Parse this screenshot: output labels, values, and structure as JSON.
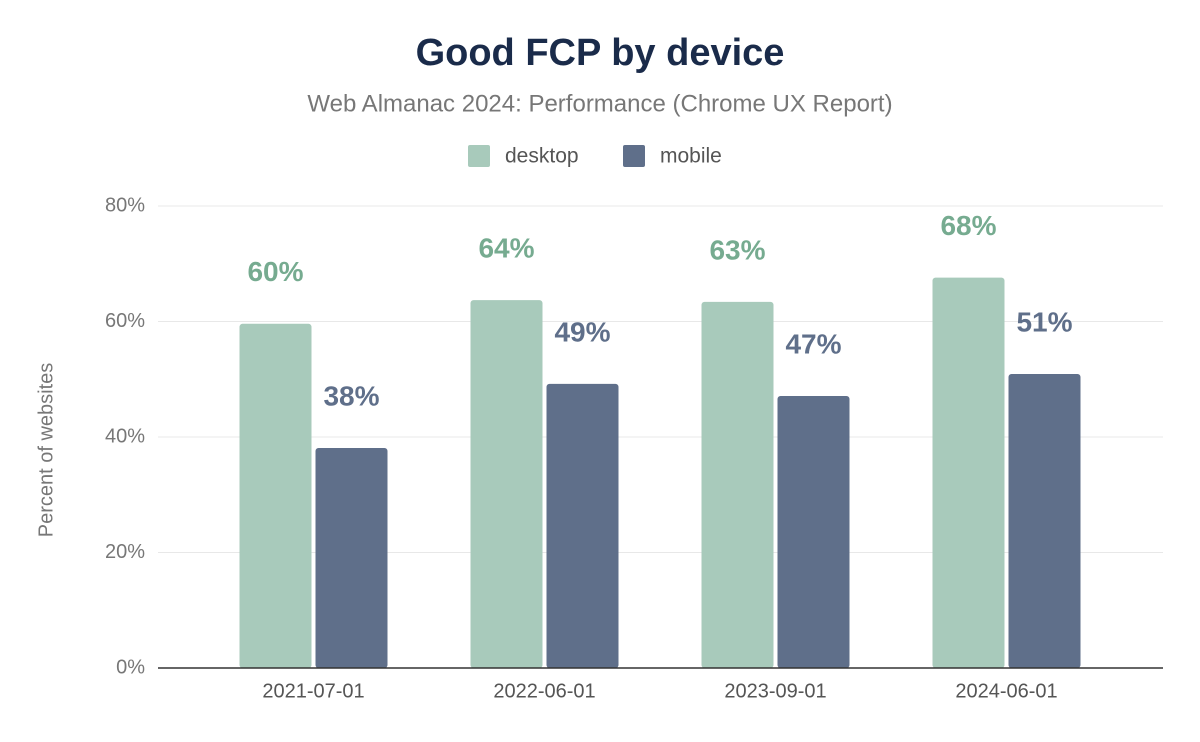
{
  "chart_data": {
    "type": "bar",
    "title": "Good FCP by device",
    "subtitle": "Web Almanac 2024: Performance (Chrome UX Report)",
    "y_label": "Percent of websites",
    "categories": [
      "2021-07-01",
      "2022-06-01",
      "2023-09-01",
      "2024-06-01"
    ],
    "series": [
      {
        "name": "desktop",
        "color": "#a8cabb",
        "label_color": "#76ab90",
        "values": [
          59.6,
          63.7,
          63.4,
          67.6
        ],
        "value_labels": [
          "60%",
          "64%",
          "63%",
          "68%"
        ]
      },
      {
        "name": "mobile",
        "color": "#5f6f8a",
        "label_color": "#5f6f8a",
        "values": [
          38.1,
          49.2,
          47.1,
          50.9
        ],
        "value_labels": [
          "38%",
          "49%",
          "47%",
          "51%"
        ]
      }
    ],
    "ylim": [
      0,
      80
    ],
    "yticks": [
      {
        "value": 0,
        "label": "0%"
      },
      {
        "value": 20,
        "label": "20%"
      },
      {
        "value": 40,
        "label": "40%"
      },
      {
        "value": 60,
        "label": "60%"
      },
      {
        "value": 80,
        "label": "80%"
      }
    ],
    "grid": true
  }
}
